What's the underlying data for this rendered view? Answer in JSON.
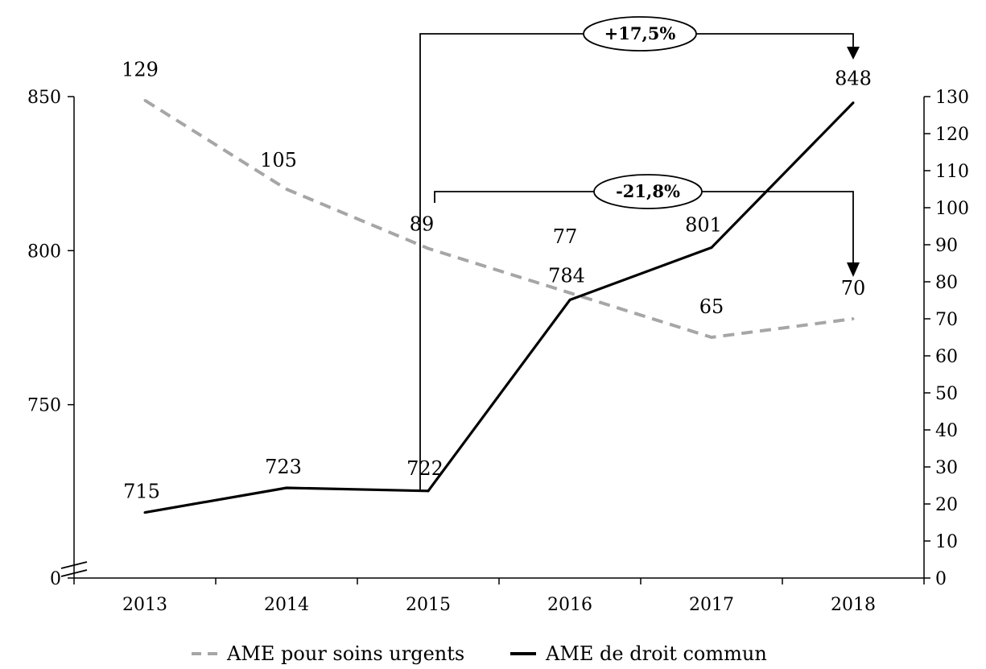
{
  "chart_data": {
    "type": "line",
    "categories": [
      "2013",
      "2014",
      "2015",
      "2016",
      "2017",
      "2018"
    ],
    "y_left": {
      "ticks": [
        "0",
        "750",
        "800",
        "850"
      ],
      "axis_break": true,
      "range": [
        700,
        850
      ]
    },
    "y_right": {
      "ticks": [
        "0",
        "10",
        "20",
        "30",
        "40",
        "50",
        "60",
        "70",
        "80",
        "90",
        "100",
        "110",
        "120",
        "130"
      ],
      "range": [
        0,
        130
      ]
    },
    "series": [
      {
        "name": "AME pour soins urgents",
        "axis": "right",
        "values": [
          129,
          105,
          89,
          77,
          65,
          70
        ],
        "labels": [
          "129",
          "105",
          "89",
          "77",
          "65",
          "70"
        ],
        "color": "#a6a6a6",
        "dash": true
      },
      {
        "name": "AME de droit commun",
        "axis": "left",
        "values": [
          715,
          723,
          722,
          784,
          801,
          848
        ],
        "labels": [
          "715",
          "723",
          "722",
          "784",
          "801",
          "848"
        ],
        "color": "#000000",
        "dash": false
      }
    ],
    "annotations": [
      {
        "text": "+17,5%",
        "from": "2015",
        "to": "2018",
        "series": "AME de droit commun"
      },
      {
        "text": "-21,8%",
        "from": "2015",
        "to": "2018",
        "series": "AME pour soins urgents"
      }
    ],
    "legend": "bottom-center"
  }
}
